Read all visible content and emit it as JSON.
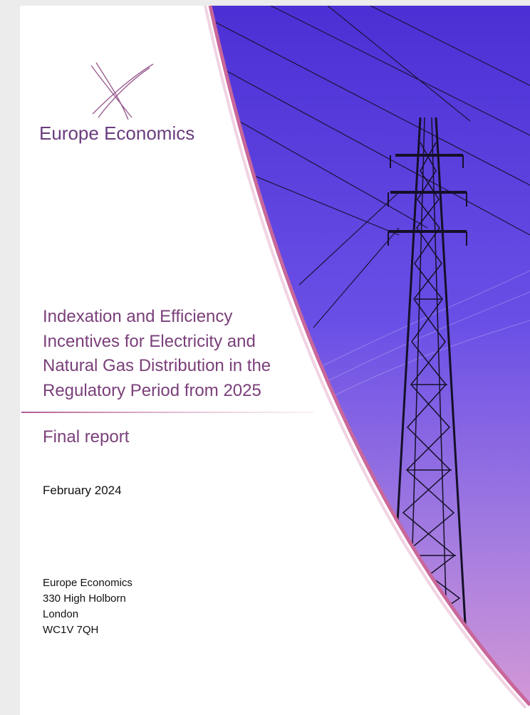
{
  "logo": "Europe Economics",
  "title": [
    "Indexation and Efficiency",
    "Incentives for Electricity and",
    "Natural Gas Distribution in the",
    "Regulatory Period from 2025"
  ],
  "subtitle": "Final report",
  "date": "February 2024",
  "address": [
    "Europe Economics",
    "330 High Holborn",
    "London",
    "WC1V 7QH"
  ]
}
